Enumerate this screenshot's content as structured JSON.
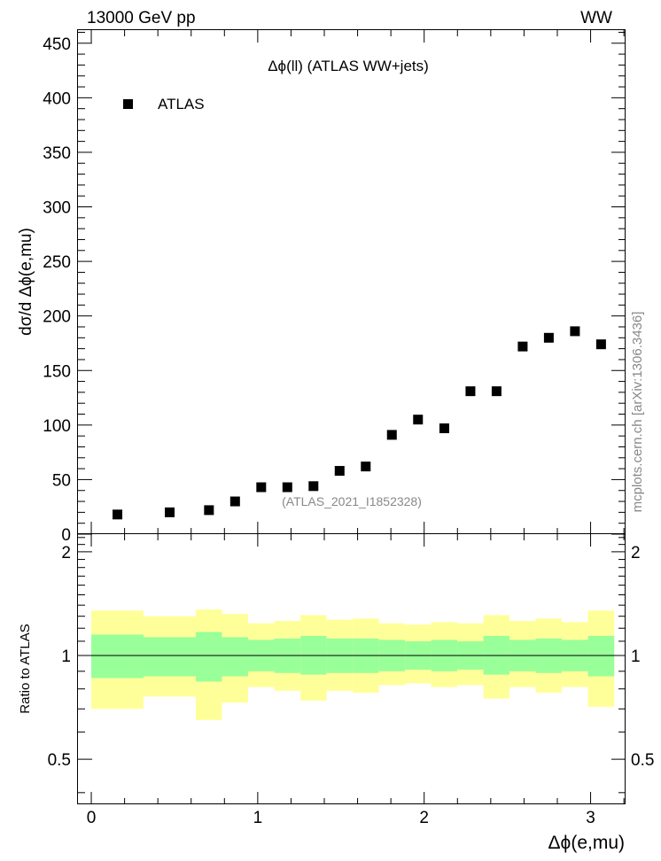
{
  "header": {
    "left": "13000 GeV pp",
    "right": "WW"
  },
  "side_label": "mcplots.cern.ch [arXiv:1306.3436]",
  "colors": {
    "marker": "#000000",
    "band_inner": "#99ff99",
    "band_outer": "#ffff99",
    "reference_line": "#000000",
    "watermark": "#888888"
  },
  "chart_data": [
    {
      "type": "scatter",
      "panel": "main",
      "title": "Δϕ(ll) (ATLAS WW+jets)",
      "xlabel": "",
      "ylabel": "dσ/d Δϕ(e,mu)",
      "xlim": [
        -0.08,
        3.21
      ],
      "ylim": [
        0,
        462
      ],
      "yticks": [
        0,
        50,
        100,
        150,
        200,
        250,
        300,
        350,
        400,
        450
      ],
      "ytick_labels": [
        "0",
        "50",
        "100",
        "150",
        "200",
        "250",
        "300",
        "350",
        "400",
        "450"
      ],
      "legend": "top-left",
      "watermark": "(ATLAS_2021_I1852328)",
      "series": [
        {
          "name": "ATLAS",
          "x": [
            0.157,
            0.471,
            0.707,
            0.864,
            1.021,
            1.178,
            1.335,
            1.492,
            1.649,
            1.806,
            1.963,
            2.121,
            2.278,
            2.435,
            2.592,
            2.749,
            2.906,
            3.063
          ],
          "values": [
            18,
            20,
            22,
            30,
            43,
            43,
            44,
            58,
            62,
            91,
            105,
            97,
            131,
            131,
            172,
            180,
            186,
            174
          ]
        }
      ]
    },
    {
      "type": "band",
      "panel": "ratio",
      "xlabel": "Δϕ(e,mu)",
      "ylabel": "Ratio to ATLAS",
      "xlim": [
        -0.08,
        3.21
      ],
      "ylim": [
        0.37,
        2.25
      ],
      "xticks": [
        0,
        1,
        2,
        3
      ],
      "xtick_labels": [
        "0",
        "1",
        "2",
        "3"
      ],
      "yticks": [
        0.5,
        1,
        2
      ],
      "ytick_labels": [
        "0.5",
        "1",
        "2"
      ],
      "reference": 1,
      "bins": [
        {
          "lo": 0.0,
          "hi": 0.314,
          "inner": [
            0.86,
            1.15
          ],
          "outer": [
            0.7,
            1.35
          ]
        },
        {
          "lo": 0.314,
          "hi": 0.628,
          "inner": [
            0.87,
            1.13
          ],
          "outer": [
            0.76,
            1.3
          ]
        },
        {
          "lo": 0.628,
          "hi": 0.785,
          "inner": [
            0.84,
            1.17
          ],
          "outer": [
            0.65,
            1.36
          ]
        },
        {
          "lo": 0.785,
          "hi": 0.942,
          "inner": [
            0.87,
            1.13
          ],
          "outer": [
            0.73,
            1.32
          ]
        },
        {
          "lo": 0.942,
          "hi": 1.099,
          "inner": [
            0.9,
            1.11
          ],
          "outer": [
            0.81,
            1.24
          ]
        },
        {
          "lo": 1.099,
          "hi": 1.257,
          "inner": [
            0.89,
            1.12
          ],
          "outer": [
            0.79,
            1.26
          ]
        },
        {
          "lo": 1.257,
          "hi": 1.414,
          "inner": [
            0.88,
            1.14
          ],
          "outer": [
            0.74,
            1.31
          ]
        },
        {
          "lo": 1.414,
          "hi": 1.571,
          "inner": [
            0.89,
            1.12
          ],
          "outer": [
            0.79,
            1.27
          ]
        },
        {
          "lo": 1.571,
          "hi": 1.728,
          "inner": [
            0.89,
            1.12
          ],
          "outer": [
            0.78,
            1.28
          ]
        },
        {
          "lo": 1.728,
          "hi": 1.885,
          "inner": [
            0.9,
            1.11
          ],
          "outer": [
            0.82,
            1.24
          ]
        },
        {
          "lo": 1.885,
          "hi": 2.042,
          "inner": [
            0.91,
            1.1
          ],
          "outer": [
            0.83,
            1.23
          ]
        },
        {
          "lo": 2.042,
          "hi": 2.199,
          "inner": [
            0.9,
            1.11
          ],
          "outer": [
            0.81,
            1.25
          ]
        },
        {
          "lo": 2.199,
          "hi": 2.356,
          "inner": [
            0.91,
            1.1
          ],
          "outer": [
            0.82,
            1.24
          ]
        },
        {
          "lo": 2.356,
          "hi": 2.513,
          "inner": [
            0.88,
            1.14
          ],
          "outer": [
            0.75,
            1.31
          ]
        },
        {
          "lo": 2.513,
          "hi": 2.67,
          "inner": [
            0.9,
            1.11
          ],
          "outer": [
            0.81,
            1.26
          ]
        },
        {
          "lo": 2.67,
          "hi": 2.827,
          "inner": [
            0.89,
            1.12
          ],
          "outer": [
            0.78,
            1.28
          ]
        },
        {
          "lo": 2.827,
          "hi": 2.984,
          "inner": [
            0.9,
            1.11
          ],
          "outer": [
            0.81,
            1.25
          ]
        },
        {
          "lo": 2.984,
          "hi": 3.142,
          "inner": [
            0.87,
            1.14
          ],
          "outer": [
            0.71,
            1.35
          ]
        }
      ]
    }
  ]
}
